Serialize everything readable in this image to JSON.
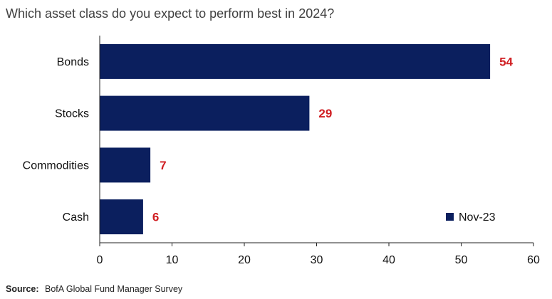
{
  "colors": {
    "bar": "#0b1f5e",
    "value_label": "#d01e22",
    "axis": "#222222"
  },
  "chart_data": {
    "type": "bar",
    "orientation": "horizontal",
    "title": "Which asset class do you expect to perform best in 2024?",
    "categories": [
      "Bonds",
      "Stocks",
      "Commodities",
      "Cash"
    ],
    "series": [
      {
        "name": "Nov-23",
        "values": [
          54,
          29,
          7,
          6
        ]
      }
    ],
    "xlim": [
      0,
      60
    ],
    "xticks": [
      0,
      10,
      20,
      30,
      40,
      50,
      60
    ],
    "grid": false,
    "legend_position": "bottom-right"
  },
  "footer": {
    "source_label": "Source:",
    "source_text": "BofA Global Fund Manager Survey"
  }
}
